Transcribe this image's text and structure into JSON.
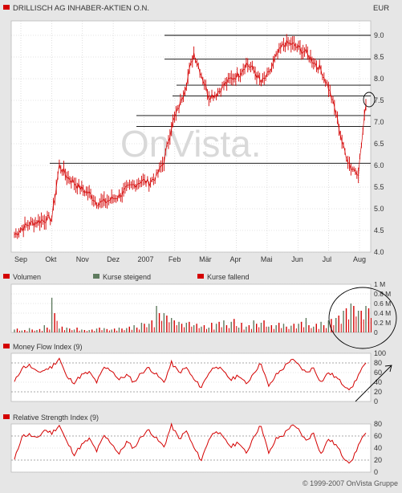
{
  "header": {
    "title": "DRILLISCH AG INHABER-AKTIEN O.N.",
    "currency": "EUR"
  },
  "watermark": "OnVista.",
  "copyright": "© 1999-2007 OnVista Gruppe",
  "colors": {
    "background": "#e6e6e6",
    "plot_bg": "#ffffff",
    "series": "#d40000",
    "rising": "#5f7b5f",
    "falling": "#d40000",
    "grid": "#c8c8c8"
  },
  "x_axis": {
    "months": [
      "Sep",
      "Okt",
      "Nov",
      "Dez",
      "2007",
      "Feb",
      "Mär",
      "Apr",
      "Mai",
      "Jun",
      "Jul",
      "Aug"
    ]
  },
  "chart_data": [
    {
      "type": "line",
      "title": "DRILLISCH AG INHABER-AKTIEN O.N.",
      "ylabel": "EUR",
      "ylim": [
        4.0,
        9.0
      ],
      "yticks": [
        "4.0",
        "4.5",
        "5.0",
        "5.5",
        "6.0",
        "6.5",
        "7.0",
        "7.5",
        "8.0",
        "8.5",
        "9.0"
      ],
      "series": [
        {
          "values": [
            4.4,
            4.55,
            4.65,
            4.7,
            4.75,
            4.78,
            6.0,
            5.75,
            5.6,
            5.45,
            5.35,
            5.15,
            5.15,
            5.22,
            5.3,
            5.45,
            5.55,
            5.65,
            5.6,
            5.75,
            6.1,
            6.9,
            7.35,
            7.9,
            8.6,
            8.1,
            7.6,
            7.65,
            7.85,
            8.0,
            8.1,
            8.35,
            8.2,
            7.9,
            8.1,
            8.5,
            8.8,
            8.8,
            8.7,
            8.6,
            8.4,
            8.2,
            7.8,
            7.2,
            6.4,
            5.95,
            5.85,
            7.4
          ]
        }
      ],
      "annotations": {
        "support_lines": [
          9.0,
          8.45,
          7.85,
          7.6,
          7.15,
          6.9,
          6.05
        ]
      }
    },
    {
      "type": "bar",
      "title": "Volumen",
      "yticks": [
        "1 M",
        "0.8 M",
        "0.6 M",
        "0.4 M",
        "0.2 M",
        "0"
      ],
      "ylim": [
        0,
        1.0
      ],
      "series": [
        {
          "name": "Kurse steigend",
          "values": [
            0.06,
            0.04,
            0.09,
            0.05,
            0.15,
            0.72,
            0.08,
            0.1,
            0.06,
            0.06,
            0.05,
            0.08,
            0.09,
            0.06,
            0.1,
            0.09,
            0.15,
            0.2,
            0.18,
            0.55,
            0.4,
            0.3,
            0.22,
            0.2,
            0.15,
            0.12,
            0.1,
            0.18,
            0.25,
            0.22,
            0.1,
            0.12,
            0.25,
            0.2,
            0.12,
            0.15,
            0.18,
            0.14,
            0.18,
            0.3,
            0.12,
            0.22,
            0.25,
            0.3,
            0.45,
            0.6,
            0.45,
            0.55
          ]
        },
        {
          "name": "Kurse fallend",
          "values": [
            0.08,
            0.05,
            0.06,
            0.07,
            0.1,
            0.4,
            0.12,
            0.08,
            0.1,
            0.05,
            0.06,
            0.1,
            0.07,
            0.08,
            0.08,
            0.12,
            0.1,
            0.18,
            0.25,
            0.4,
            0.35,
            0.25,
            0.18,
            0.22,
            0.18,
            0.15,
            0.2,
            0.22,
            0.15,
            0.28,
            0.2,
            0.15,
            0.18,
            0.25,
            0.15,
            0.2,
            0.12,
            0.18,
            0.22,
            0.15,
            0.18,
            0.15,
            0.28,
            0.35,
            0.5,
            0.55,
            0.45,
            0.5
          ]
        }
      ]
    },
    {
      "type": "line",
      "title": "Money Flow Index (9)",
      "ylim": [
        0,
        100
      ],
      "yticks": [
        "100",
        "80",
        "60",
        "40",
        "20",
        "0"
      ],
      "series": [
        {
          "values": [
            40,
            70,
            75,
            60,
            65,
            72,
            90,
            50,
            40,
            55,
            60,
            40,
            70,
            65,
            45,
            55,
            40,
            60,
            70,
            55,
            40,
            80,
            60,
            70,
            45,
            30,
            60,
            75,
            60,
            45,
            55,
            35,
            60,
            80,
            30,
            55,
            70,
            88,
            75,
            60,
            70,
            40,
            60,
            50,
            35,
            25,
            55,
            80
          ]
        }
      ]
    },
    {
      "type": "line",
      "title": "Relative Strength Index (9)",
      "ylim": [
        0,
        80
      ],
      "yticks": [
        "80",
        "60",
        "40",
        "20",
        "0"
      ],
      "series": [
        {
          "values": [
            20,
            60,
            62,
            55,
            70,
            65,
            78,
            50,
            30,
            45,
            55,
            35,
            60,
            48,
            30,
            50,
            40,
            60,
            70,
            55,
            42,
            78,
            55,
            68,
            40,
            20,
            55,
            70,
            55,
            42,
            50,
            30,
            60,
            78,
            30,
            55,
            62,
            78,
            70,
            52,
            65,
            30,
            55,
            45,
            25,
            15,
            45,
            65
          ]
        }
      ]
    }
  ],
  "legend": {
    "rising": "Kurse steigend",
    "falling": "Kurse fallend"
  }
}
